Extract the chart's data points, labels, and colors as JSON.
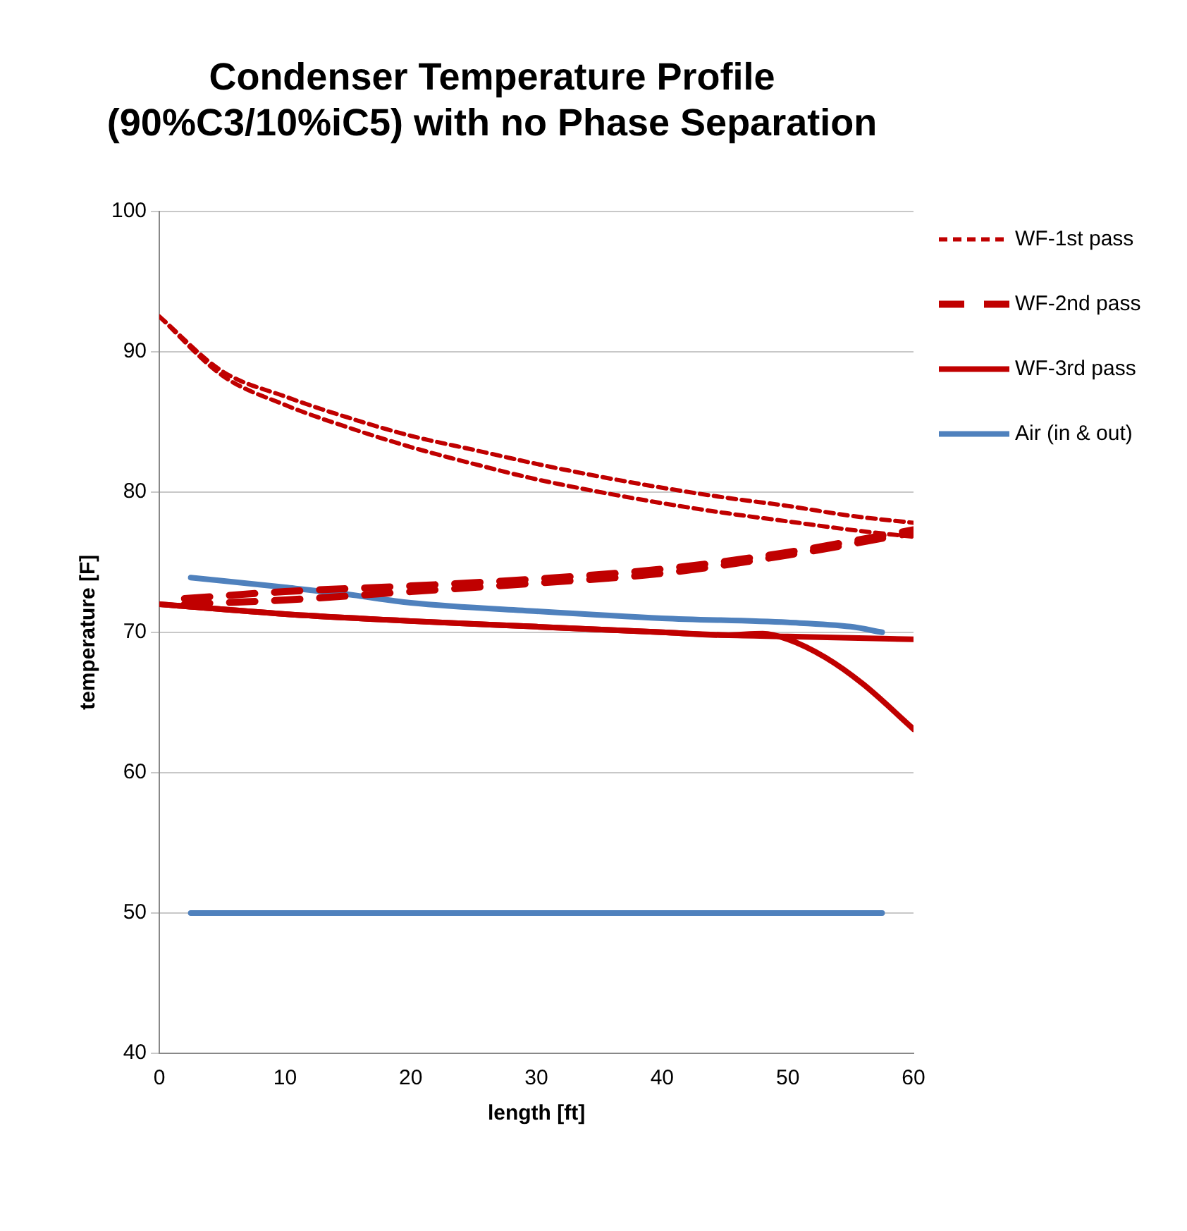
{
  "chart_data": {
    "type": "line",
    "title": "Condenser Temperature Profile\n(90%C3/10%iC5) with no Phase Separation",
    "xlabel": "length [ft]",
    "ylabel": "temperature [F]",
    "xlim": [
      0,
      60
    ],
    "xticks": [
      0,
      10,
      20,
      30,
      40,
      50,
      60
    ],
    "ylim": [
      40,
      100
    ],
    "yticks": [
      40,
      50,
      60,
      70,
      80,
      90,
      100
    ],
    "grid": "y",
    "legend": "right",
    "marker": "none",
    "series": [
      {
        "name": "WF-1st pass",
        "color": "#c00000",
        "line_style": "dotted",
        "x": [
          0,
          5,
          10,
          15,
          20,
          25,
          30,
          35,
          40,
          45,
          50,
          55,
          60
        ],
        "values": [
          92.5,
          88.6,
          86.8,
          85.3,
          84.0,
          83.0,
          82.0,
          81.1,
          80.3,
          79.6,
          79.0,
          78.3,
          77.8
        ]
      },
      {
        "color": "#c00000",
        "line_style": "dotted",
        "x": [
          0,
          5,
          10,
          15,
          20,
          25,
          30,
          35,
          40,
          45,
          50,
          55,
          60
        ],
        "values": [
          92.5,
          88.3,
          86.2,
          84.6,
          83.2,
          82.0,
          80.9,
          80.0,
          79.2,
          78.5,
          77.9,
          77.3,
          76.8
        ]
      },
      {
        "name": "WF-2nd pass",
        "color": "#c00000",
        "line_style": "dashed",
        "x": [
          2,
          10,
          20,
          30,
          40,
          50,
          60
        ],
        "values": [
          72.4,
          72.9,
          73.3,
          73.8,
          74.5,
          75.7,
          77.3
        ]
      },
      {
        "color": "#c00000",
        "line_style": "dashed",
        "x": [
          2,
          10,
          20,
          30,
          40,
          50,
          60
        ],
        "values": [
          72.0,
          72.3,
          72.9,
          73.5,
          74.2,
          75.5,
          77.1
        ]
      },
      {
        "name": "WF-3rd pass",
        "color": "#c00000",
        "line_style": "solid",
        "x": [
          0,
          10,
          20,
          30,
          40,
          45,
          50,
          55,
          60
        ],
        "values": [
          72.0,
          71.3,
          70.8,
          70.4,
          70.0,
          69.8,
          69.7,
          69.6,
          69.5
        ]
      },
      {
        "color": "#c00000",
        "line_style": "solid",
        "x": [
          0,
          10,
          20,
          30,
          40,
          45,
          48,
          50,
          53,
          56,
          60
        ],
        "values": [
          72.0,
          71.3,
          70.8,
          70.4,
          70.0,
          69.8,
          69.9,
          69.5,
          68.2,
          66.3,
          63.1
        ]
      },
      {
        "name": "Air (in & out)",
        "color": "#4f81bd",
        "line_style": "solid",
        "x": [
          2.5,
          10,
          15,
          20,
          30,
          40,
          50,
          55,
          57.5
        ],
        "values": [
          73.9,
          73.2,
          72.7,
          72.1,
          71.5,
          71.0,
          70.7,
          70.4,
          70.0
        ]
      },
      {
        "color": "#4f81bd",
        "line_style": "solid",
        "x": [
          2.5,
          57.5
        ],
        "values": [
          50,
          50
        ]
      }
    ]
  }
}
